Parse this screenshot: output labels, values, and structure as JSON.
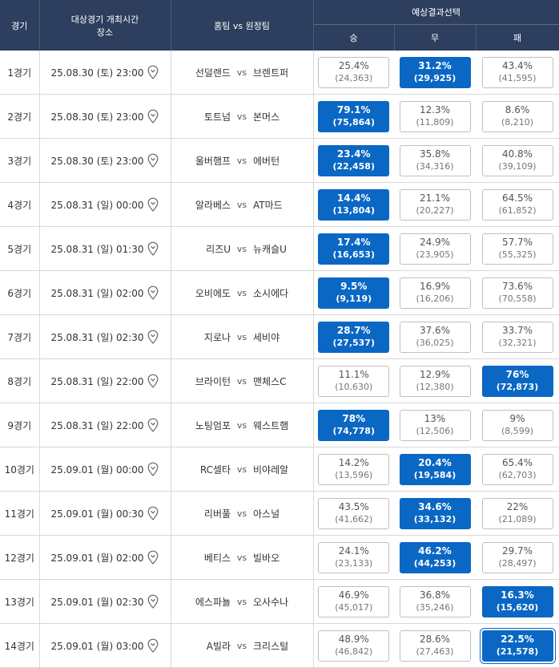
{
  "header": {
    "game_col": "경기",
    "time_col_line1": "대상경기 개최시간",
    "time_col_line2": "장소",
    "teams_col": "홈팀 vs 원정팀",
    "prediction_group": "예상결과선택",
    "win": "승",
    "draw": "무",
    "lose": "패"
  },
  "colors": {
    "selected": "#0a67c4",
    "header": "#2d3e5e"
  },
  "vs_label": "vs",
  "rows": [
    {
      "no": "1경기",
      "time": "25.08.30 (토) 23:00",
      "home": "선덜랜드",
      "away": "브렌트퍼",
      "win": {
        "pct": "25.4%",
        "cnt": "(24,363)"
      },
      "draw": {
        "pct": "31.2%",
        "cnt": "(29,925)"
      },
      "lose": {
        "pct": "43.4%",
        "cnt": "(41,595)"
      },
      "selected": "draw"
    },
    {
      "no": "2경기",
      "time": "25.08.30 (토) 23:00",
      "home": "토트넘",
      "away": "본머스",
      "win": {
        "pct": "79.1%",
        "cnt": "(75,864)"
      },
      "draw": {
        "pct": "12.3%",
        "cnt": "(11,809)"
      },
      "lose": {
        "pct": "8.6%",
        "cnt": "(8,210)"
      },
      "selected": "win"
    },
    {
      "no": "3경기",
      "time": "25.08.30 (토) 23:00",
      "home": "울버햄프",
      "away": "에버턴",
      "win": {
        "pct": "23.4%",
        "cnt": "(22,458)"
      },
      "draw": {
        "pct": "35.8%",
        "cnt": "(34,316)"
      },
      "lose": {
        "pct": "40.8%",
        "cnt": "(39,109)"
      },
      "selected": "win"
    },
    {
      "no": "4경기",
      "time": "25.08.31 (일) 00:00",
      "home": "알라베스",
      "away": "AT마드",
      "win": {
        "pct": "14.4%",
        "cnt": "(13,804)"
      },
      "draw": {
        "pct": "21.1%",
        "cnt": "(20,227)"
      },
      "lose": {
        "pct": "64.5%",
        "cnt": "(61,852)"
      },
      "selected": "win"
    },
    {
      "no": "5경기",
      "time": "25.08.31 (일) 01:30",
      "home": "리즈U",
      "away": "뉴캐슬U",
      "win": {
        "pct": "17.4%",
        "cnt": "(16,653)"
      },
      "draw": {
        "pct": "24.9%",
        "cnt": "(23,905)"
      },
      "lose": {
        "pct": "57.7%",
        "cnt": "(55,325)"
      },
      "selected": "win"
    },
    {
      "no": "6경기",
      "time": "25.08.31 (일) 02:00",
      "home": "오비에도",
      "away": "소시에다",
      "win": {
        "pct": "9.5%",
        "cnt": "(9,119)"
      },
      "draw": {
        "pct": "16.9%",
        "cnt": "(16,206)"
      },
      "lose": {
        "pct": "73.6%",
        "cnt": "(70,558)"
      },
      "selected": "win"
    },
    {
      "no": "7경기",
      "time": "25.08.31 (일) 02:30",
      "home": "지로나",
      "away": "세비야",
      "win": {
        "pct": "28.7%",
        "cnt": "(27,537)"
      },
      "draw": {
        "pct": "37.6%",
        "cnt": "(36,025)"
      },
      "lose": {
        "pct": "33.7%",
        "cnt": "(32,321)"
      },
      "selected": "win"
    },
    {
      "no": "8경기",
      "time": "25.08.31 (일) 22:00",
      "home": "브라이턴",
      "away": "맨체스C",
      "win": {
        "pct": "11.1%",
        "cnt": "(10,630)"
      },
      "draw": {
        "pct": "12.9%",
        "cnt": "(12,380)"
      },
      "lose": {
        "pct": "76%",
        "cnt": "(72,873)"
      },
      "selected": "lose"
    },
    {
      "no": "9경기",
      "time": "25.08.31 (일) 22:00",
      "home": "노팅엄포",
      "away": "웨스트햄",
      "win": {
        "pct": "78%",
        "cnt": "(74,778)"
      },
      "draw": {
        "pct": "13%",
        "cnt": "(12,506)"
      },
      "lose": {
        "pct": "9%",
        "cnt": "(8,599)"
      },
      "selected": "win"
    },
    {
      "no": "10경기",
      "time": "25.09.01 (월) 00:00",
      "home": "RC셀타",
      "away": "비야레알",
      "win": {
        "pct": "14.2%",
        "cnt": "(13,596)"
      },
      "draw": {
        "pct": "20.4%",
        "cnt": "(19,584)"
      },
      "lose": {
        "pct": "65.4%",
        "cnt": "(62,703)"
      },
      "selected": "draw"
    },
    {
      "no": "11경기",
      "time": "25.09.01 (월) 00:30",
      "home": "리버풀",
      "away": "아스널",
      "win": {
        "pct": "43.5%",
        "cnt": "(41,662)"
      },
      "draw": {
        "pct": "34.6%",
        "cnt": "(33,132)"
      },
      "lose": {
        "pct": "22%",
        "cnt": "(21,089)"
      },
      "selected": "draw"
    },
    {
      "no": "12경기",
      "time": "25.09.01 (월) 02:00",
      "home": "베티스",
      "away": "빌바오",
      "win": {
        "pct": "24.1%",
        "cnt": "(23,133)"
      },
      "draw": {
        "pct": "46.2%",
        "cnt": "(44,253)"
      },
      "lose": {
        "pct": "29.7%",
        "cnt": "(28,497)"
      },
      "selected": "draw"
    },
    {
      "no": "13경기",
      "time": "25.09.01 (월) 02:30",
      "home": "에스파뇰",
      "away": "오사수나",
      "win": {
        "pct": "46.9%",
        "cnt": "(45,017)"
      },
      "draw": {
        "pct": "36.8%",
        "cnt": "(35,246)"
      },
      "lose": {
        "pct": "16.3%",
        "cnt": "(15,620)"
      },
      "selected": "lose"
    },
    {
      "no": "14경기",
      "time": "25.09.01 (월) 03:00",
      "home": "A빌라",
      "away": "크리스털",
      "win": {
        "pct": "48.9%",
        "cnt": "(46,842)"
      },
      "draw": {
        "pct": "28.6%",
        "cnt": "(27,463)"
      },
      "lose": {
        "pct": "22.5%",
        "cnt": "(21,578)"
      },
      "selected": "lose",
      "focused": "lose"
    }
  ]
}
